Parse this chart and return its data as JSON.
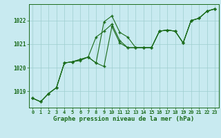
{
  "title": "Graphe pression niveau de la mer (hPa)",
  "background_color": "#c8eaf0",
  "grid_color": "#9ecece",
  "line_color": "#1a6b1a",
  "x_values": [
    0,
    1,
    2,
    3,
    4,
    5,
    6,
    7,
    8,
    9,
    10,
    11,
    12,
    13,
    14,
    15,
    16,
    17,
    18,
    19,
    20,
    21,
    22,
    23
  ],
  "line1": [
    1018.7,
    1018.55,
    1018.9,
    1019.15,
    1020.2,
    1020.25,
    1020.3,
    1020.45,
    1020.2,
    1020.05,
    1021.75,
    1021.05,
    1020.85,
    1020.85,
    1020.85,
    1020.85,
    1021.55,
    1021.6,
    1021.55,
    1021.05,
    1022.0,
    1022.1,
    1022.4,
    1022.5
  ],
  "line2": [
    1018.7,
    1018.55,
    1018.9,
    1019.15,
    1020.2,
    1020.25,
    1020.35,
    1020.45,
    1021.3,
    1021.55,
    1021.85,
    1021.15,
    1020.85,
    1020.85,
    1020.85,
    1020.85,
    1021.55,
    1021.6,
    1021.55,
    1021.05,
    1022.0,
    1022.1,
    1022.4,
    1022.5
  ],
  "line3": [
    1018.7,
    1018.55,
    1018.9,
    1019.15,
    1020.2,
    1020.25,
    1020.35,
    1020.45,
    1020.2,
    1021.95,
    1022.2,
    1021.5,
    1021.3,
    1020.85,
    1020.85,
    1020.85,
    1021.55,
    1021.6,
    1021.55,
    1021.05,
    1022.0,
    1022.1,
    1022.4,
    1022.5
  ],
  "ylim_min": 1018.3,
  "ylim_max": 1022.7,
  "yticks": [
    1019,
    1020,
    1021,
    1022
  ],
  "xlim_min": -0.5,
  "xlim_max": 23.5,
  "figwidth": 3.2,
  "figheight": 2.0,
  "dpi": 100
}
